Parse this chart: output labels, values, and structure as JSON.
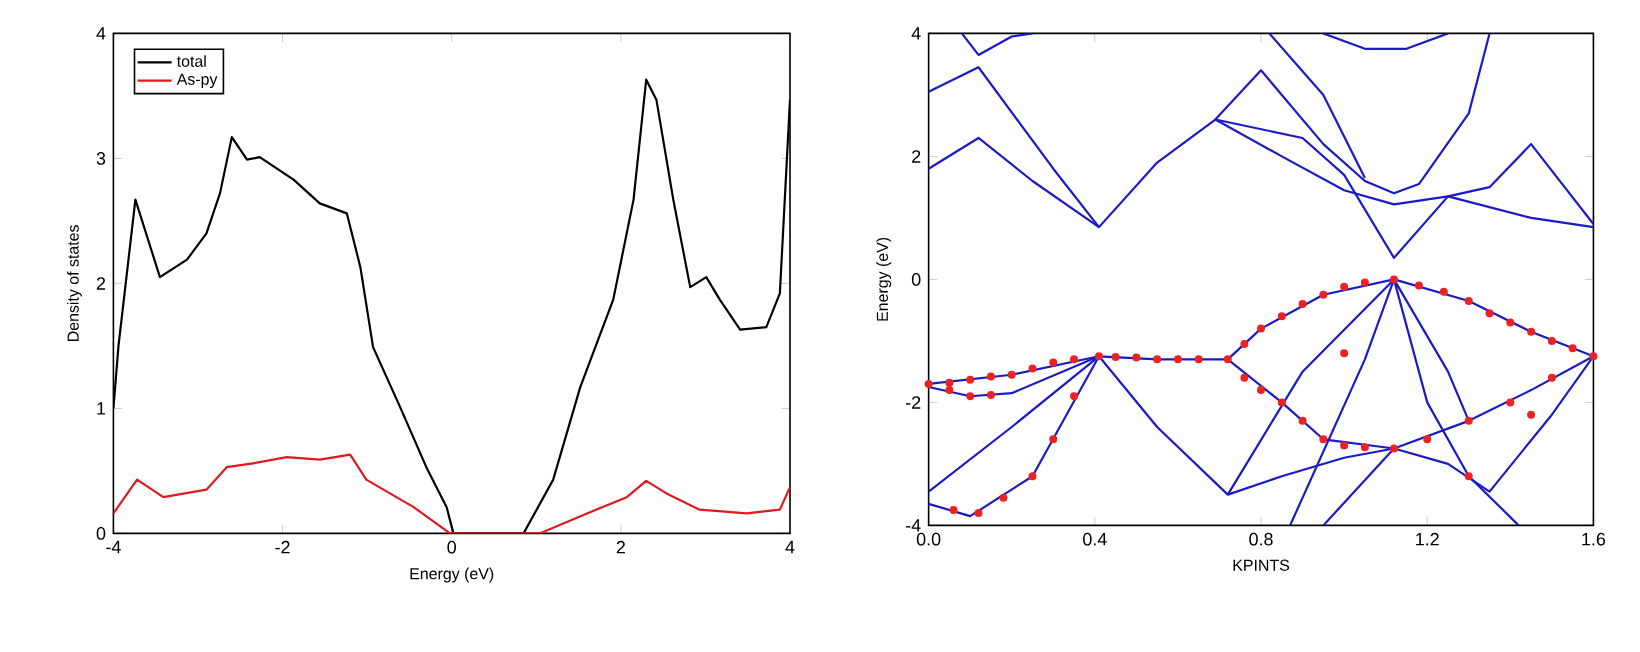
{
  "chart_data": [
    {
      "type": "line",
      "xlabel": "Energy (eV)",
      "ylabel": "Density of states",
      "xlim": [
        -4,
        4
      ],
      "ylim": [
        0,
        4
      ],
      "xticks": [
        -4,
        -2,
        0,
        2,
        4
      ],
      "yticks": [
        0,
        1,
        2,
        3,
        4
      ],
      "legend": "top left",
      "series": [
        {
          "name": "total",
          "color": "#000000",
          "x": [
            -4,
            -3.94,
            -3.74,
            -3.45,
            -3.13,
            -2.9,
            -2.74,
            -2.6,
            -2.42,
            -2.27,
            -1.87,
            -1.56,
            -1.24,
            -1.08,
            -0.93,
            -0.61,
            -0.3,
            -0.06,
            0.02,
            0.85,
            1.2,
            1.52,
            1.91,
            2.15,
            2.3,
            2.42,
            2.62,
            2.82,
            3.01,
            3.17,
            3.41,
            3.72,
            3.88,
            4
          ],
          "values": [
            1.0,
            1.5,
            2.67,
            2.05,
            2.19,
            2.4,
            2.72,
            3.17,
            2.99,
            3.01,
            2.83,
            2.64,
            2.56,
            2.13,
            1.49,
            1.01,
            0.53,
            0.21,
            0,
            0,
            0.43,
            1.17,
            1.87,
            2.67,
            3.63,
            3.47,
            2.67,
            1.97,
            2.05,
            1.87,
            1.63,
            1.65,
            1.92,
            3.47
          ]
        },
        {
          "name": "As-py",
          "color": "#e0191e",
          "x": [
            -4,
            -3.72,
            -3.41,
            -2.9,
            -2.66,
            -2.35,
            -1.95,
            -1.56,
            -1.2,
            -1.01,
            -0.45,
            -0.02,
            1.04,
            1.6,
            2.07,
            2.3,
            2.54,
            2.93,
            3.49,
            3.88,
            4
          ],
          "values": [
            0.16,
            0.43,
            0.29,
            0.35,
            0.53,
            0.56,
            0.61,
            0.59,
            0.63,
            0.43,
            0.21,
            0,
            0,
            0.16,
            0.29,
            0.42,
            0.32,
            0.19,
            0.16,
            0.19,
            0.37
          ]
        }
      ]
    },
    {
      "type": "line",
      "xlabel": "KPINTS",
      "ylabel": "Energy (eV)",
      "xlim": [
        0,
        1.6
      ],
      "ylim": [
        -4,
        4
      ],
      "xticks": [
        {
          "value": 0,
          "label": "0.0"
        },
        {
          "value": 0.4,
          "label": "0.4"
        },
        {
          "value": 0.8,
          "label": "0.8"
        },
        {
          "value": 1.2,
          "label": "1.2"
        },
        {
          "value": 1.6,
          "label": "1.6"
        }
      ],
      "yticks": [
        -4,
        -2,
        0,
        2,
        4
      ],
      "series": [
        {
          "color": "#1a1ac8",
          "x": [
            0,
            0.12,
            0.25,
            0.41,
            0.55,
            0.69,
            0.85,
            1.0,
            1.12,
            1.25,
            1.45,
            1.6
          ],
          "values": [
            1.8,
            2.3,
            1.6,
            0.85,
            1.9,
            2.6,
            2.0,
            1.45,
            1.22,
            1.35,
            1.0,
            0.85
          ]
        },
        {
          "color": "#1a1ac8",
          "x": [
            0,
            0.12,
            0.3,
            0.41
          ],
          "values": [
            3.05,
            3.45,
            1.8,
            0.85
          ]
        },
        {
          "color": "#1a1ac8",
          "x": [
            0.08,
            0.12,
            0.2,
            0.25
          ],
          "values": [
            4.0,
            3.65,
            3.95,
            4.0
          ]
        },
        {
          "color": "#1a1ac8",
          "x": [
            0.69,
            0.8,
            0.95,
            1.05,
            1.12,
            1.18,
            1.3,
            1.35
          ],
          "values": [
            2.6,
            3.4,
            2.2,
            1.6,
            1.4,
            1.55,
            2.7,
            4.0
          ]
        },
        {
          "color": "#1a1ac8",
          "x": [
            0.69,
            0.9,
            1.0,
            1.12,
            1.25,
            1.35,
            1.45,
            1.6
          ],
          "values": [
            2.6,
            2.3,
            1.7,
            0.35,
            1.35,
            1.5,
            2.2,
            0.9
          ]
        },
        {
          "color": "#1a1ac8",
          "x": [
            0.82,
            0.95,
            1.05
          ],
          "values": [
            4.0,
            3.0,
            1.65
          ]
        },
        {
          "color": "#1a1ac8",
          "x": [
            0.95,
            1.05,
            1.15,
            1.25
          ],
          "values": [
            4.0,
            3.75,
            3.75,
            4.0
          ]
        },
        {
          "color": "#1a1ac8",
          "x": [
            0,
            0.2,
            0.41,
            0.55,
            0.72,
            0.8,
            0.95,
            1.12,
            1.3,
            1.45,
            1.6
          ],
          "values": [
            -1.7,
            -1.55,
            -1.25,
            -1.3,
            -1.3,
            -0.8,
            -0.25,
            0,
            -0.35,
            -0.85,
            -1.25
          ]
        },
        {
          "color": "#1a1ac8",
          "x": [
            0,
            0.1,
            0.2,
            0.41
          ],
          "values": [
            -1.75,
            -1.9,
            -1.85,
            -1.25
          ]
        },
        {
          "color": "#1a1ac8",
          "x": [
            0.72,
            0.85,
            0.95,
            1.12,
            1.3,
            1.45,
            1.6
          ],
          "values": [
            -1.3,
            -2.0,
            -2.6,
            -2.75,
            -2.3,
            -1.8,
            -1.25
          ]
        },
        {
          "color": "#1a1ac8",
          "x": [
            0,
            0.2,
            0.41,
            0.55,
            0.72,
            0.85,
            1.0,
            1.12,
            1.25,
            1.35,
            1.5,
            1.6
          ],
          "values": [
            -3.45,
            -2.4,
            -1.25,
            -2.4,
            -3.5,
            -3.2,
            -2.9,
            -2.75,
            -3.0,
            -3.45,
            -2.2,
            -1.25
          ]
        },
        {
          "color": "#1a1ac8",
          "x": [
            0,
            0.1,
            0.25,
            0.41
          ],
          "values": [
            -3.65,
            -3.85,
            -3.2,
            -1.25
          ]
        },
        {
          "color": "#1a1ac8",
          "x": [
            0.72,
            0.9,
            1.12,
            1.25,
            1.3
          ],
          "values": [
            -3.5,
            -1.5,
            0,
            -1.5,
            -2.3
          ]
        },
        {
          "color": "#1a1ac8",
          "x": [
            0.87,
            1.05,
            1.12
          ],
          "values": [
            -4.0,
            -1.3,
            0
          ]
        },
        {
          "color": "#1a1ac8",
          "x": [
            0.95,
            1.12
          ],
          "values": [
            -4.0,
            -2.75
          ]
        },
        {
          "color": "#1a1ac8",
          "x": [
            1.12,
            1.2,
            1.3,
            1.42
          ],
          "values": [
            0,
            -2.0,
            -3.2,
            -4.0
          ]
        },
        {
          "type": "scatter",
          "color": "#ee2222",
          "x": [
            0,
            0.05,
            0.1,
            0.15,
            0.2,
            0.25,
            0.3,
            0.35,
            0.41,
            0.45,
            0.5,
            0.55,
            0.6,
            0.65,
            0.72,
            0.76,
            0.8,
            0.85,
            0.9,
            0.95,
            1.0,
            1.05,
            1.12,
            1.18,
            1.24,
            1.3,
            1.35,
            1.4,
            1.45,
            1.5,
            1.55,
            1.6,
            0.05,
            0.1,
            0.15,
            0.76,
            0.8,
            0.85,
            0.9,
            0.95,
            1.0,
            1.05,
            1.12,
            1.2,
            1.3,
            1.4,
            1.5,
            0.06,
            0.12,
            0.18,
            0.25,
            0.3,
            0.35,
            1.0,
            1.3,
            1.45
          ],
          "values": [
            -1.7,
            -1.68,
            -1.63,
            -1.58,
            -1.55,
            -1.45,
            -1.35,
            -1.3,
            -1.25,
            -1.26,
            -1.27,
            -1.3,
            -1.3,
            -1.3,
            -1.3,
            -1.05,
            -0.8,
            -0.6,
            -0.4,
            -0.25,
            -0.12,
            -0.05,
            0,
            -0.1,
            -0.2,
            -0.35,
            -0.55,
            -0.7,
            -0.85,
            -1.0,
            -1.12,
            -1.25,
            -1.8,
            -1.9,
            -1.88,
            -1.6,
            -1.8,
            -2.0,
            -2.3,
            -2.6,
            -2.7,
            -2.73,
            -2.75,
            -2.6,
            -2.3,
            -2.0,
            -1.6,
            -3.75,
            -3.8,
            -3.55,
            -3.2,
            -2.6,
            -1.9,
            -1.2,
            -3.2,
            -2.2
          ]
        }
      ]
    }
  ]
}
